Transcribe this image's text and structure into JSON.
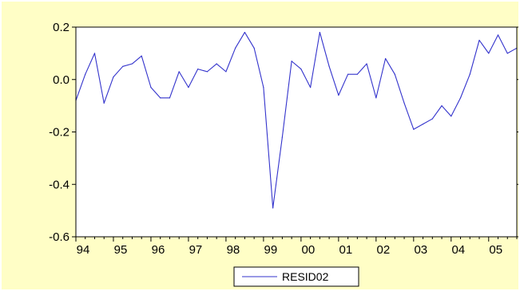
{
  "chart_data": {
    "type": "line",
    "title": "",
    "xlabel": "",
    "ylabel": "",
    "x_start": 1994.0,
    "x_step": 0.25,
    "xlim": [
      1994.0,
      2005.75
    ],
    "ylim": [
      -0.6,
      0.2
    ],
    "y_ticks": [
      0.2,
      0.0,
      -0.2,
      -0.4,
      -0.6
    ],
    "y_tick_labels": [
      "0.2",
      "0.0",
      "-0.2",
      "-0.4",
      "-0.6"
    ],
    "x_ticks": [
      1994,
      1995,
      1996,
      1997,
      1998,
      1999,
      2000,
      2001,
      2002,
      2003,
      2004,
      2005
    ],
    "x_tick_labels": [
      "94",
      "95",
      "96",
      "97",
      "98",
      "99",
      "00",
      "01",
      "02",
      "03",
      "04",
      "05"
    ],
    "grid": false,
    "legend_position": "bottom-center",
    "series": [
      {
        "name": "RESID02",
        "color": "#3333cc",
        "values": [
          -0.08,
          0.02,
          0.1,
          -0.09,
          0.01,
          0.05,
          0.06,
          0.09,
          -0.03,
          -0.07,
          -0.07,
          0.03,
          -0.03,
          0.04,
          0.03,
          0.06,
          0.03,
          0.12,
          0.18,
          0.12,
          -0.03,
          -0.49,
          -0.22,
          0.07,
          0.04,
          -0.03,
          0.18,
          0.05,
          -0.06,
          0.02,
          0.02,
          0.06,
          -0.07,
          0.08,
          0.02,
          -0.09,
          -0.19,
          -0.17,
          -0.15,
          -0.1,
          -0.14,
          -0.07,
          0.02,
          0.15,
          0.1,
          0.17,
          0.1,
          0.12
        ]
      }
    ]
  }
}
